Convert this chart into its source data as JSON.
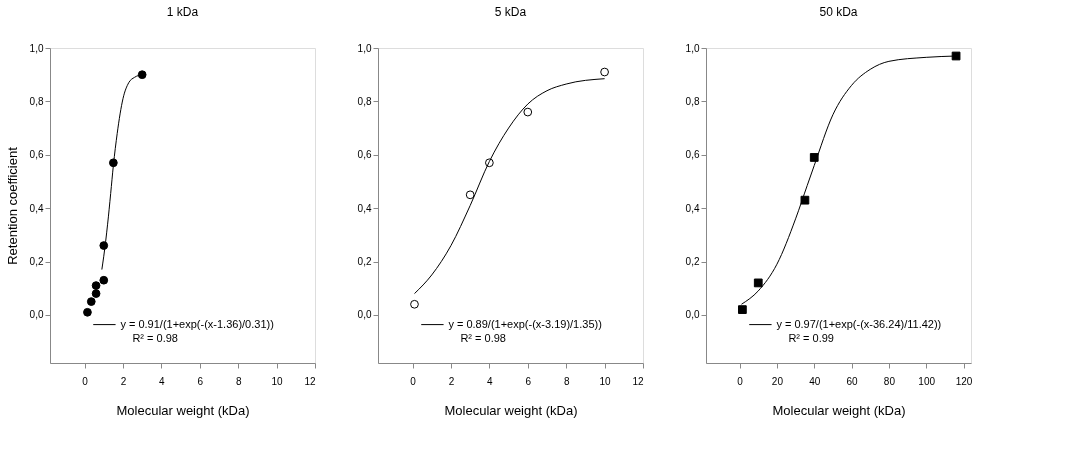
{
  "chart_data": [
    {
      "type": "scatter",
      "title": "1 kDa",
      "xlabel": "Molecular weight (kDa)",
      "ylabel": "Retention coefficient",
      "xlim": [
        -1.8,
        12
      ],
      "xticks": [
        0,
        2,
        4,
        6,
        8,
        10,
        12
      ],
      "ylim": [
        -0.18,
        1.0
      ],
      "yticks": [
        {
          "value": 0,
          "label": "0,0"
        },
        {
          "value": 0.2,
          "label": "0,2"
        },
        {
          "value": 0.4,
          "label": "0,4"
        },
        {
          "value": 0.6,
          "label": "0,6"
        },
        {
          "value": 0.8,
          "label": "0,8"
        },
        {
          "value": 1,
          "label": "1,0"
        }
      ],
      "grid": false,
      "legend": "bottom right",
      "annotations": [
        "R² = 0.98"
      ],
      "series": [
        {
          "marker": "circle",
          "color": "#000000",
          "x": [
            0.15,
            0.35,
            0.6,
            0.6,
            1.0,
            1.0,
            1.5,
            3.0
          ],
          "values": [
            0.01,
            0.05,
            0.11,
            0.08,
            0.26,
            0.13,
            0.57,
            0.9
          ]
        },
        {
          "type": "line",
          "name": "y = 0.91/(1+exp(-(x-1.36)/0.31))",
          "color": "#000000",
          "x": [
            0.9,
            1.0,
            1.2,
            1.36,
            1.5,
            1.7,
            2.0,
            2.3,
            2.6,
            3.0
          ],
          "values": [
            0.17,
            0.22,
            0.34,
            0.455,
            0.56,
            0.68,
            0.81,
            0.87,
            0.89,
            0.9
          ]
        }
      ]
    },
    {
      "type": "scatter",
      "title": "5 kDa",
      "xlabel": "Molecular weight (kDa)",
      "xlim": [
        -1.8,
        12
      ],
      "xticks": [
        0,
        2,
        4,
        6,
        8,
        10,
        12
      ],
      "ylim": [
        -0.18,
        1.0
      ],
      "yticks": [
        {
          "value": 0,
          "label": "0,0"
        },
        {
          "value": 0.2,
          "label": "0,2"
        },
        {
          "value": 0.4,
          "label": "0,4"
        },
        {
          "value": 0.6,
          "label": "0,6"
        },
        {
          "value": 0.8,
          "label": "0,8"
        },
        {
          "value": 1,
          "label": "1,0"
        }
      ],
      "grid": false,
      "legend": "bottom right",
      "annotations": [
        "R² = 0.98"
      ],
      "series": [
        {
          "marker": "circle",
          "color": "#ffffff",
          "x": [
            0.1,
            3,
            4,
            6,
            10
          ],
          "values": [
            0.04,
            0.45,
            0.57,
            0.76,
            0.91
          ]
        },
        {
          "type": "line",
          "name": "y = 0.89/(1+exp(-(x-3.19)/1.35))",
          "color": "#000000",
          "x": [
            0.1,
            1,
            2,
            3,
            4,
            5,
            6,
            7,
            8,
            10
          ],
          "values": [
            0.08,
            0.15,
            0.26,
            0.41,
            0.575,
            0.7,
            0.79,
            0.84,
            0.865,
            0.885
          ]
        }
      ]
    },
    {
      "type": "scatter",
      "title": "50 kDa",
      "xlabel": "Molecular weight (kDa)",
      "xlim": [
        -18,
        124
      ],
      "xticks": [
        0,
        20,
        40,
        60,
        80,
        100,
        120
      ],
      "ylim": [
        -0.18,
        1.0
      ],
      "yticks": [
        {
          "value": 0,
          "label": "0,0"
        },
        {
          "value": 0.2,
          "label": "0,2"
        },
        {
          "value": 0.4,
          "label": "0,4"
        },
        {
          "value": 0.6,
          "label": "0,6"
        },
        {
          "value": 0.8,
          "label": "0,8"
        },
        {
          "value": 1,
          "label": "1,0"
        }
      ],
      "grid": false,
      "legend": "bottom right",
      "annotations": [
        "R² = 0.99"
      ],
      "series": [
        {
          "marker": "square",
          "color": "#000000",
          "x": [
            1.5,
            10,
            35,
            40,
            116
          ],
          "values": [
            0.02,
            0.12,
            0.43,
            0.59,
            0.97
          ]
        },
        {
          "type": "line",
          "name": "y = 0.97/(1+exp(-(x-36.24)/11.42))",
          "color": "#000000",
          "x": [
            1,
            10,
            20,
            30,
            36.24,
            40,
            50,
            60,
            70,
            80,
            100,
            116
          ],
          "values": [
            0.04,
            0.09,
            0.19,
            0.36,
            0.485,
            0.56,
            0.75,
            0.86,
            0.92,
            0.95,
            0.965,
            0.97
          ]
        }
      ]
    }
  ]
}
